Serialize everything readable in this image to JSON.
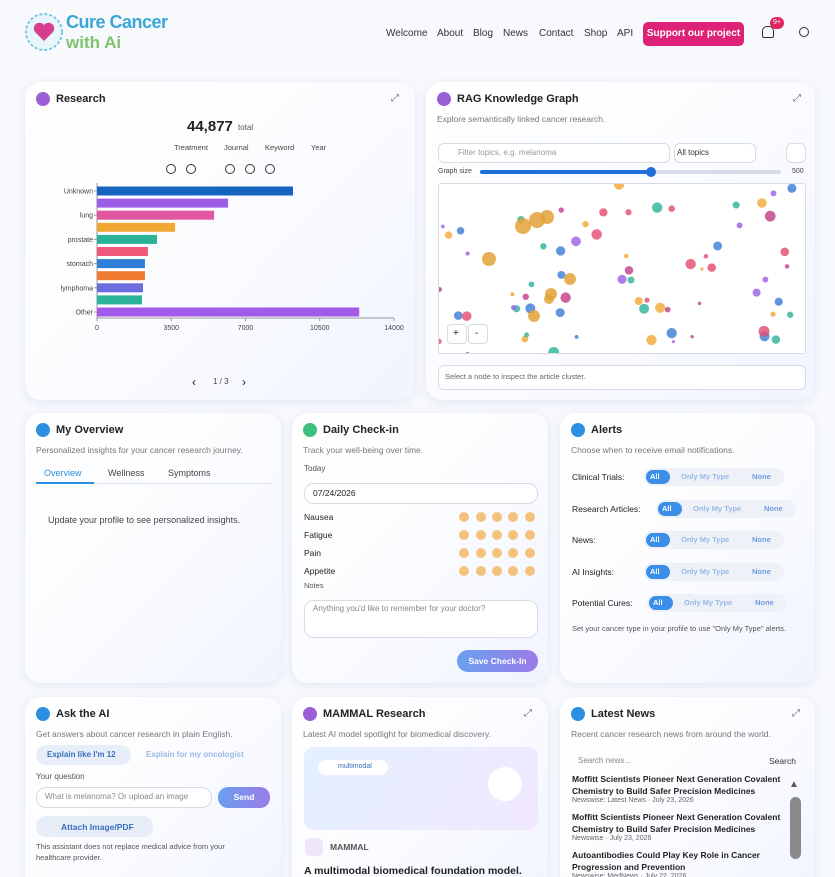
{
  "header": {
    "logo_line1": "Cure Cancer",
    "logo_line2": "with Ai",
    "nav": [
      "Welcome",
      "About",
      "Blog",
      "News",
      "Contact",
      "Shop",
      "API"
    ],
    "cta": "Support our project",
    "badge": "9+"
  },
  "research": {
    "title": "Research",
    "total": "44,877",
    "total_label": "total",
    "tabs": [
      "Treatment",
      "Journal",
      "Keyword",
      "Year"
    ],
    "page": "1 / 3"
  },
  "chart_data": {
    "type": "bar",
    "orientation": "horizontal",
    "categories": [
      "Unknown",
      null,
      "lung",
      null,
      "prostate",
      null,
      "stomach",
      null,
      "lymphoma",
      null,
      "Other"
    ],
    "values": [
      9240,
      6180,
      5520,
      3680,
      2830,
      2400,
      2260,
      2260,
      2170,
      2120,
      12360
    ],
    "colors": [
      "#1565c0",
      "#9b5de5",
      "#e0569f",
      "#f2a735",
      "#2bb39a",
      "#f0587a",
      "#2f7fd8",
      "#f07a30",
      "#6c6ce0",
      "#2bb39a",
      "#a45ae8"
    ],
    "xlim": [
      0,
      14000
    ],
    "xticks": [
      0,
      3500,
      7000,
      10500,
      14000
    ]
  },
  "rag": {
    "title": "RAG Knowledge Graph",
    "subtitle": "Explore semantically linked cancer research.",
    "filter_placeholder": "Filter topics, e.g. melanoma",
    "select": "All topics",
    "graph_size_label": "Graph size",
    "graph_size_max": "500",
    "zoom_in": "+",
    "zoom_out": "-",
    "footer": "Select a node to inspect the article cluster."
  },
  "overview": {
    "title": "My Overview",
    "subtitle": "Personalized insights for your cancer research journey.",
    "tabs": [
      "Overview",
      "Wellness",
      "Symptoms"
    ],
    "message": "Update your profile to see personalized insights."
  },
  "checkin": {
    "title": "Daily Check-in",
    "subtitle": "Track your well-being over time.",
    "today_label": "Today",
    "date": "07/24/2026",
    "rows": [
      "Nausea",
      "Fatigue",
      "Pain",
      "Appetite"
    ],
    "notes_label": "Notes",
    "notes_placeholder": "Anything you'd like to remember for your doctor?",
    "button": "Save Check-In"
  },
  "alerts": {
    "title": "Alerts",
    "subtitle": "Choose when to receive email notifications.",
    "rows": [
      "Clinical Trials:",
      "Research Articles:",
      "News:",
      "AI Insights:",
      "Potential Cures:"
    ],
    "options": [
      "All",
      "Only My Type",
      "None"
    ],
    "note": "Set your cancer type in your profile to use \"Only My Type\" alerts."
  },
  "ask": {
    "title": "Ask the AI",
    "subtitle": "Get answers about cancer research in plain English.",
    "modes": [
      "Explain like I'm 12",
      "Explain for my oncologist"
    ],
    "question_label": "Your question",
    "placeholder": "What is melanoma? Or upload an image",
    "send": "Send",
    "attach": "Attach Image/PDF",
    "disclaimer": "This assistant does not replace medical advice from your healthcare provider."
  },
  "mammal": {
    "title": "MAMMAL Research",
    "subtitle": "Latest AI model spotlight for biomedical discovery.",
    "chip": "multimodal",
    "name": "MAMMAL",
    "headline": "A multimodal biomedical foundation model."
  },
  "news": {
    "title": "Latest News",
    "subtitle": "Recent cancer research news from around the world.",
    "search_placeholder": "Search news...",
    "search": "Search",
    "items": [
      {
        "title": "Moffitt Scientists Pioneer Next Generation Covalent Chemistry to Build Safer Precision Medicines",
        "meta": "Newswise: Latest News · July 23, 2026"
      },
      {
        "title": "Moffitt Scientists Pioneer Next Generation Covalent Chemistry to Build Safer Precision Medicines",
        "meta": "Newswise · July 23, 2026"
      },
      {
        "title": "Autoantibodies Could Play Key Role in Cancer Progression and Prevention",
        "meta": "Newswise: MedNews · July 22, 2026"
      }
    ]
  }
}
